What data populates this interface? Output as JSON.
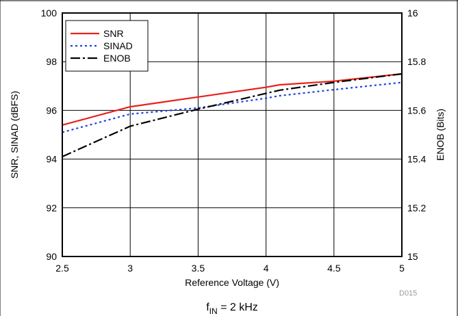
{
  "chart_data": {
    "type": "line",
    "x": [
      2.5,
      3.0,
      3.5,
      4.0,
      4.1,
      4.5,
      5.0
    ],
    "series": [
      {
        "name": "SNR",
        "axis": "left",
        "color": "#e8201c",
        "dash": "solid",
        "values": [
          95.4,
          96.15,
          96.55,
          96.95,
          97.05,
          97.2,
          97.5
        ]
      },
      {
        "name": "SINAD",
        "axis": "left",
        "color": "#1d3fe0",
        "dash": "dot",
        "values": [
          95.1,
          95.85,
          96.1,
          96.5,
          96.6,
          96.85,
          97.15
        ]
      },
      {
        "name": "ENOB",
        "axis": "right",
        "color": "#000000",
        "dash": "dash-dot",
        "values": [
          15.41,
          15.535,
          15.605,
          15.67,
          15.683,
          15.715,
          15.75
        ]
      }
    ],
    "xlabel": "Reference Voltage (V)",
    "ylabel": "SNR, SINAD (dBFS)",
    "y2label": "ENOB (Bits)",
    "xlim": [
      2.5,
      5
    ],
    "ylim": [
      90,
      100
    ],
    "y2lim": [
      15,
      16
    ],
    "xticks": [
      "2.5",
      "3",
      "3.5",
      "4",
      "4.5",
      "5"
    ],
    "yticks": [
      "90",
      "92",
      "94",
      "96",
      "98",
      "100"
    ],
    "y2ticks": [
      "15",
      "15.2",
      "15.4",
      "15.6",
      "15.8",
      "16"
    ],
    "grid": true,
    "legend_position": "top-left",
    "figure_id": "D015",
    "caption": {
      "prefix": "f",
      "subscript": "IN",
      "suffix": " = 2 kHz"
    }
  }
}
